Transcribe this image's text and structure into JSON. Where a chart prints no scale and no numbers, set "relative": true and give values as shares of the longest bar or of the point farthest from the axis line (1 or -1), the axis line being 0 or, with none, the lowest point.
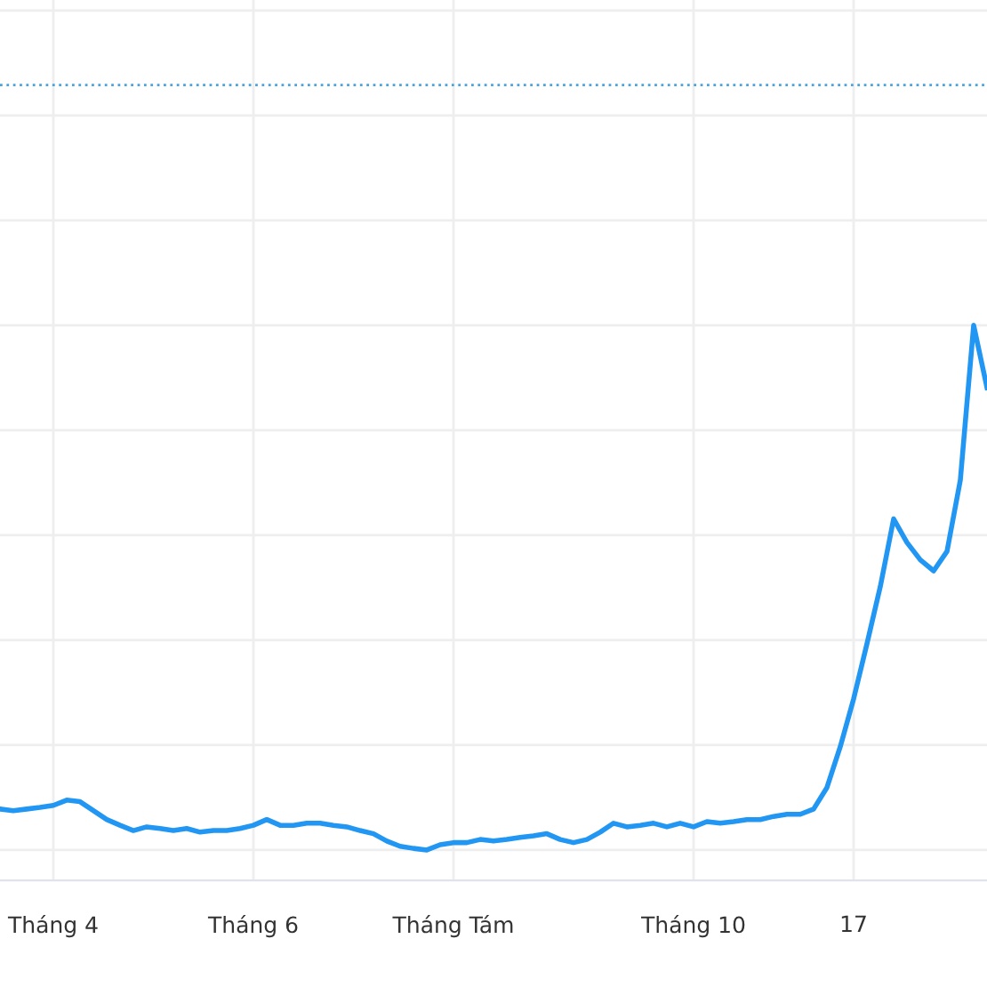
{
  "chart_data": {
    "type": "line",
    "relative": true,
    "categories": [
      null,
      null,
      null,
      null,
      "Tháng 4",
      null,
      null,
      null,
      null,
      null,
      null,
      null,
      null,
      null,
      null,
      null,
      null,
      null,
      null,
      "Tháng 6",
      null,
      null,
      null,
      null,
      null,
      null,
      null,
      null,
      null,
      null,
      null,
      null,
      null,
      null,
      "Tháng Tám",
      null,
      null,
      null,
      null,
      null,
      null,
      null,
      null,
      null,
      null,
      null,
      null,
      null,
      null,
      null,
      null,
      null,
      "Tháng 10",
      null,
      null,
      null,
      null,
      null,
      null,
      null,
      null,
      null,
      null,
      null,
      "17",
      null,
      null,
      null,
      null,
      null,
      null,
      null,
      null,
      null,
      null
    ],
    "series": [
      {
        "color": "#2196f3",
        "values": [
          0.078,
          0.075,
          0.078,
          0.081,
          0.085,
          0.095,
          0.092,
          0.075,
          0.058,
          0.047,
          0.037,
          0.044,
          0.041,
          0.037,
          0.041,
          0.034,
          0.037,
          0.037,
          0.041,
          0.047,
          0.058,
          0.047,
          0.047,
          0.051,
          0.051,
          0.047,
          0.044,
          0.037,
          0.031,
          0.017,
          0.007,
          0.003,
          0.0,
          0.01,
          0.014,
          0.014,
          0.02,
          0.017,
          0.02,
          0.024,
          0.027,
          0.031,
          0.02,
          0.014,
          0.02,
          0.034,
          0.051,
          0.044,
          0.047,
          0.051,
          0.044,
          0.051,
          0.044,
          0.054,
          0.051,
          0.054,
          0.058,
          0.058,
          0.064,
          0.068,
          0.068,
          0.078,
          0.119,
          0.197,
          0.288,
          0.393,
          0.502,
          0.631,
          0.586,
          0.553,
          0.532,
          0.569,
          0.705,
          1.0,
          0.881
        ]
      }
    ],
    "tick_labels": "x",
    "grid": true,
    "marker": "none",
    "line_style": "solid",
    "ref_lines": [
      {
        "axis": "y",
        "value": 1.458,
        "color": "#4aa3df",
        "line_style": "dotted"
      }
    ]
  }
}
